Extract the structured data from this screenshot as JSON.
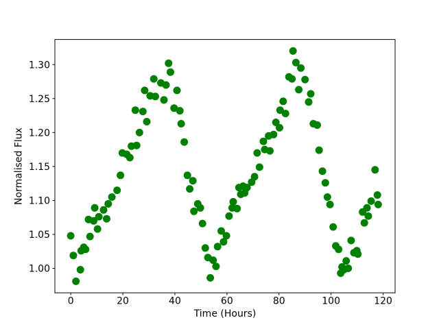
{
  "chart_data": {
    "type": "scatter",
    "title": "",
    "xlabel": "Time (Hours)",
    "ylabel": "Normalised Flux",
    "legend": null,
    "grid": false,
    "background_color": "#ffffff",
    "marker_color": "#008000",
    "axis_color": "#000000",
    "xlim": [
      -6.1,
      124.6
    ],
    "ylim": [
      0.964,
      1.337
    ],
    "xticks": [
      0,
      20,
      40,
      60,
      80,
      100,
      120
    ],
    "xtick_labels": [
      "0",
      "20",
      "40",
      "60",
      "80",
      "100",
      "120"
    ],
    "yticks": [
      1.0,
      1.05,
      1.1,
      1.15,
      1.2,
      1.25,
      1.3
    ],
    "ytick_labels": [
      "1.00",
      "1.05",
      "1.10",
      "1.15",
      "1.20",
      "1.25",
      "1.30"
    ],
    "points": [
      [
        0.0,
        1.048
      ],
      [
        1.0,
        1.019
      ],
      [
        2.0,
        0.981
      ],
      [
        3.7,
        0.998
      ],
      [
        4.0,
        1.026
      ],
      [
        5.0,
        1.031
      ],
      [
        5.7,
        1.028
      ],
      [
        6.8,
        1.072
      ],
      [
        7.4,
        1.047
      ],
      [
        8.8,
        1.07
      ],
      [
        9.2,
        1.089
      ],
      [
        10.3,
        1.058
      ],
      [
        10.8,
        1.076
      ],
      [
        12.6,
        1.086
      ],
      [
        13.8,
        1.073
      ],
      [
        14.4,
        1.095
      ],
      [
        15.8,
        1.105
      ],
      [
        17.8,
        1.115
      ],
      [
        19.1,
        1.137
      ],
      [
        19.8,
        1.17
      ],
      [
        21.5,
        1.168
      ],
      [
        22.7,
        1.163
      ],
      [
        23.3,
        1.18
      ],
      [
        24.8,
        1.233
      ],
      [
        25.3,
        1.181
      ],
      [
        26.4,
        1.2
      ],
      [
        27.7,
        1.231
      ],
      [
        28.4,
        1.262
      ],
      [
        29.2,
        1.216
      ],
      [
        30.5,
        1.254
      ],
      [
        31.9,
        1.279
      ],
      [
        32.5,
        1.253
      ],
      [
        34.6,
        1.273
      ],
      [
        35.8,
        1.248
      ],
      [
        36.6,
        1.27
      ],
      [
        37.6,
        1.302
      ],
      [
        38.3,
        1.289
      ],
      [
        39.7,
        1.236
      ],
      [
        40.8,
        1.262
      ],
      [
        41.9,
        1.232
      ],
      [
        42.4,
        1.213
      ],
      [
        43.6,
        1.186
      ],
      [
        44.8,
        1.137
      ],
      [
        45.7,
        1.117
      ],
      [
        46.9,
        1.129
      ],
      [
        47.3,
        1.084
      ],
      [
        48.8,
        1.095
      ],
      [
        49.8,
        1.089
      ],
      [
        50.6,
        1.066
      ],
      [
        51.7,
        1.03
      ],
      [
        52.7,
        1.016
      ],
      [
        53.6,
        0.986
      ],
      [
        54.7,
        1.012
      ],
      [
        55.8,
        1.003
      ],
      [
        56.4,
        1.032
      ],
      [
        57.8,
        1.055
      ],
      [
        58.7,
        1.039
      ],
      [
        59.8,
        1.048
      ],
      [
        60.8,
        1.077
      ],
      [
        62.0,
        1.089
      ],
      [
        62.4,
        1.098
      ],
      [
        63.9,
        1.088
      ],
      [
        64.6,
        1.119
      ],
      [
        65.3,
        1.109
      ],
      [
        66.2,
        1.121
      ],
      [
        66.8,
        1.111
      ],
      [
        67.7,
        1.119
      ],
      [
        69.5,
        1.127
      ],
      [
        70.6,
        1.135
      ],
      [
        71.6,
        1.17
      ],
      [
        72.5,
        1.149
      ],
      [
        74.0,
        1.187
      ],
      [
        74.5,
        1.175
      ],
      [
        76.0,
        1.195
      ],
      [
        76.5,
        1.173
      ],
      [
        77.9,
        1.197
      ],
      [
        78.8,
        1.215
      ],
      [
        80.2,
        1.207
      ],
      [
        80.4,
        1.233
      ],
      [
        81.6,
        1.246
      ],
      [
        82.5,
        1.228
      ],
      [
        83.8,
        1.282
      ],
      [
        85.0,
        1.279
      ],
      [
        85.4,
        1.32
      ],
      [
        86.5,
        1.303
      ],
      [
        87.6,
        1.263
      ],
      [
        88.4,
        1.295
      ],
      [
        90.0,
        1.278
      ],
      [
        91.4,
        1.245
      ],
      [
        92.2,
        1.257
      ],
      [
        93.2,
        1.213
      ],
      [
        94.7,
        1.211
      ],
      [
        95.4,
        1.174
      ],
      [
        96.7,
        1.143
      ],
      [
        97.8,
        1.126
      ],
      [
        98.6,
        1.105
      ],
      [
        99.6,
        1.094
      ],
      [
        100.8,
        1.061
      ],
      [
        101.8,
        1.033
      ],
      [
        102.9,
        1.028
      ],
      [
        103.7,
        0.993
      ],
      [
        104.2,
        1.002
      ],
      [
        104.9,
        0.998
      ],
      [
        105.8,
        1.011
      ],
      [
        106.6,
        1.0
      ],
      [
        107.7,
        1.041
      ],
      [
        108.8,
        1.023
      ],
      [
        109.9,
        1.026
      ],
      [
        110.3,
        1.021
      ],
      [
        112.1,
        1.083
      ],
      [
        112.8,
        1.067
      ],
      [
        113.8,
        1.089
      ],
      [
        114.3,
        1.077
      ],
      [
        115.4,
        1.099
      ],
      [
        116.9,
        1.145
      ],
      [
        117.8,
        1.108
      ],
      [
        118.1,
        1.094
      ]
    ]
  }
}
